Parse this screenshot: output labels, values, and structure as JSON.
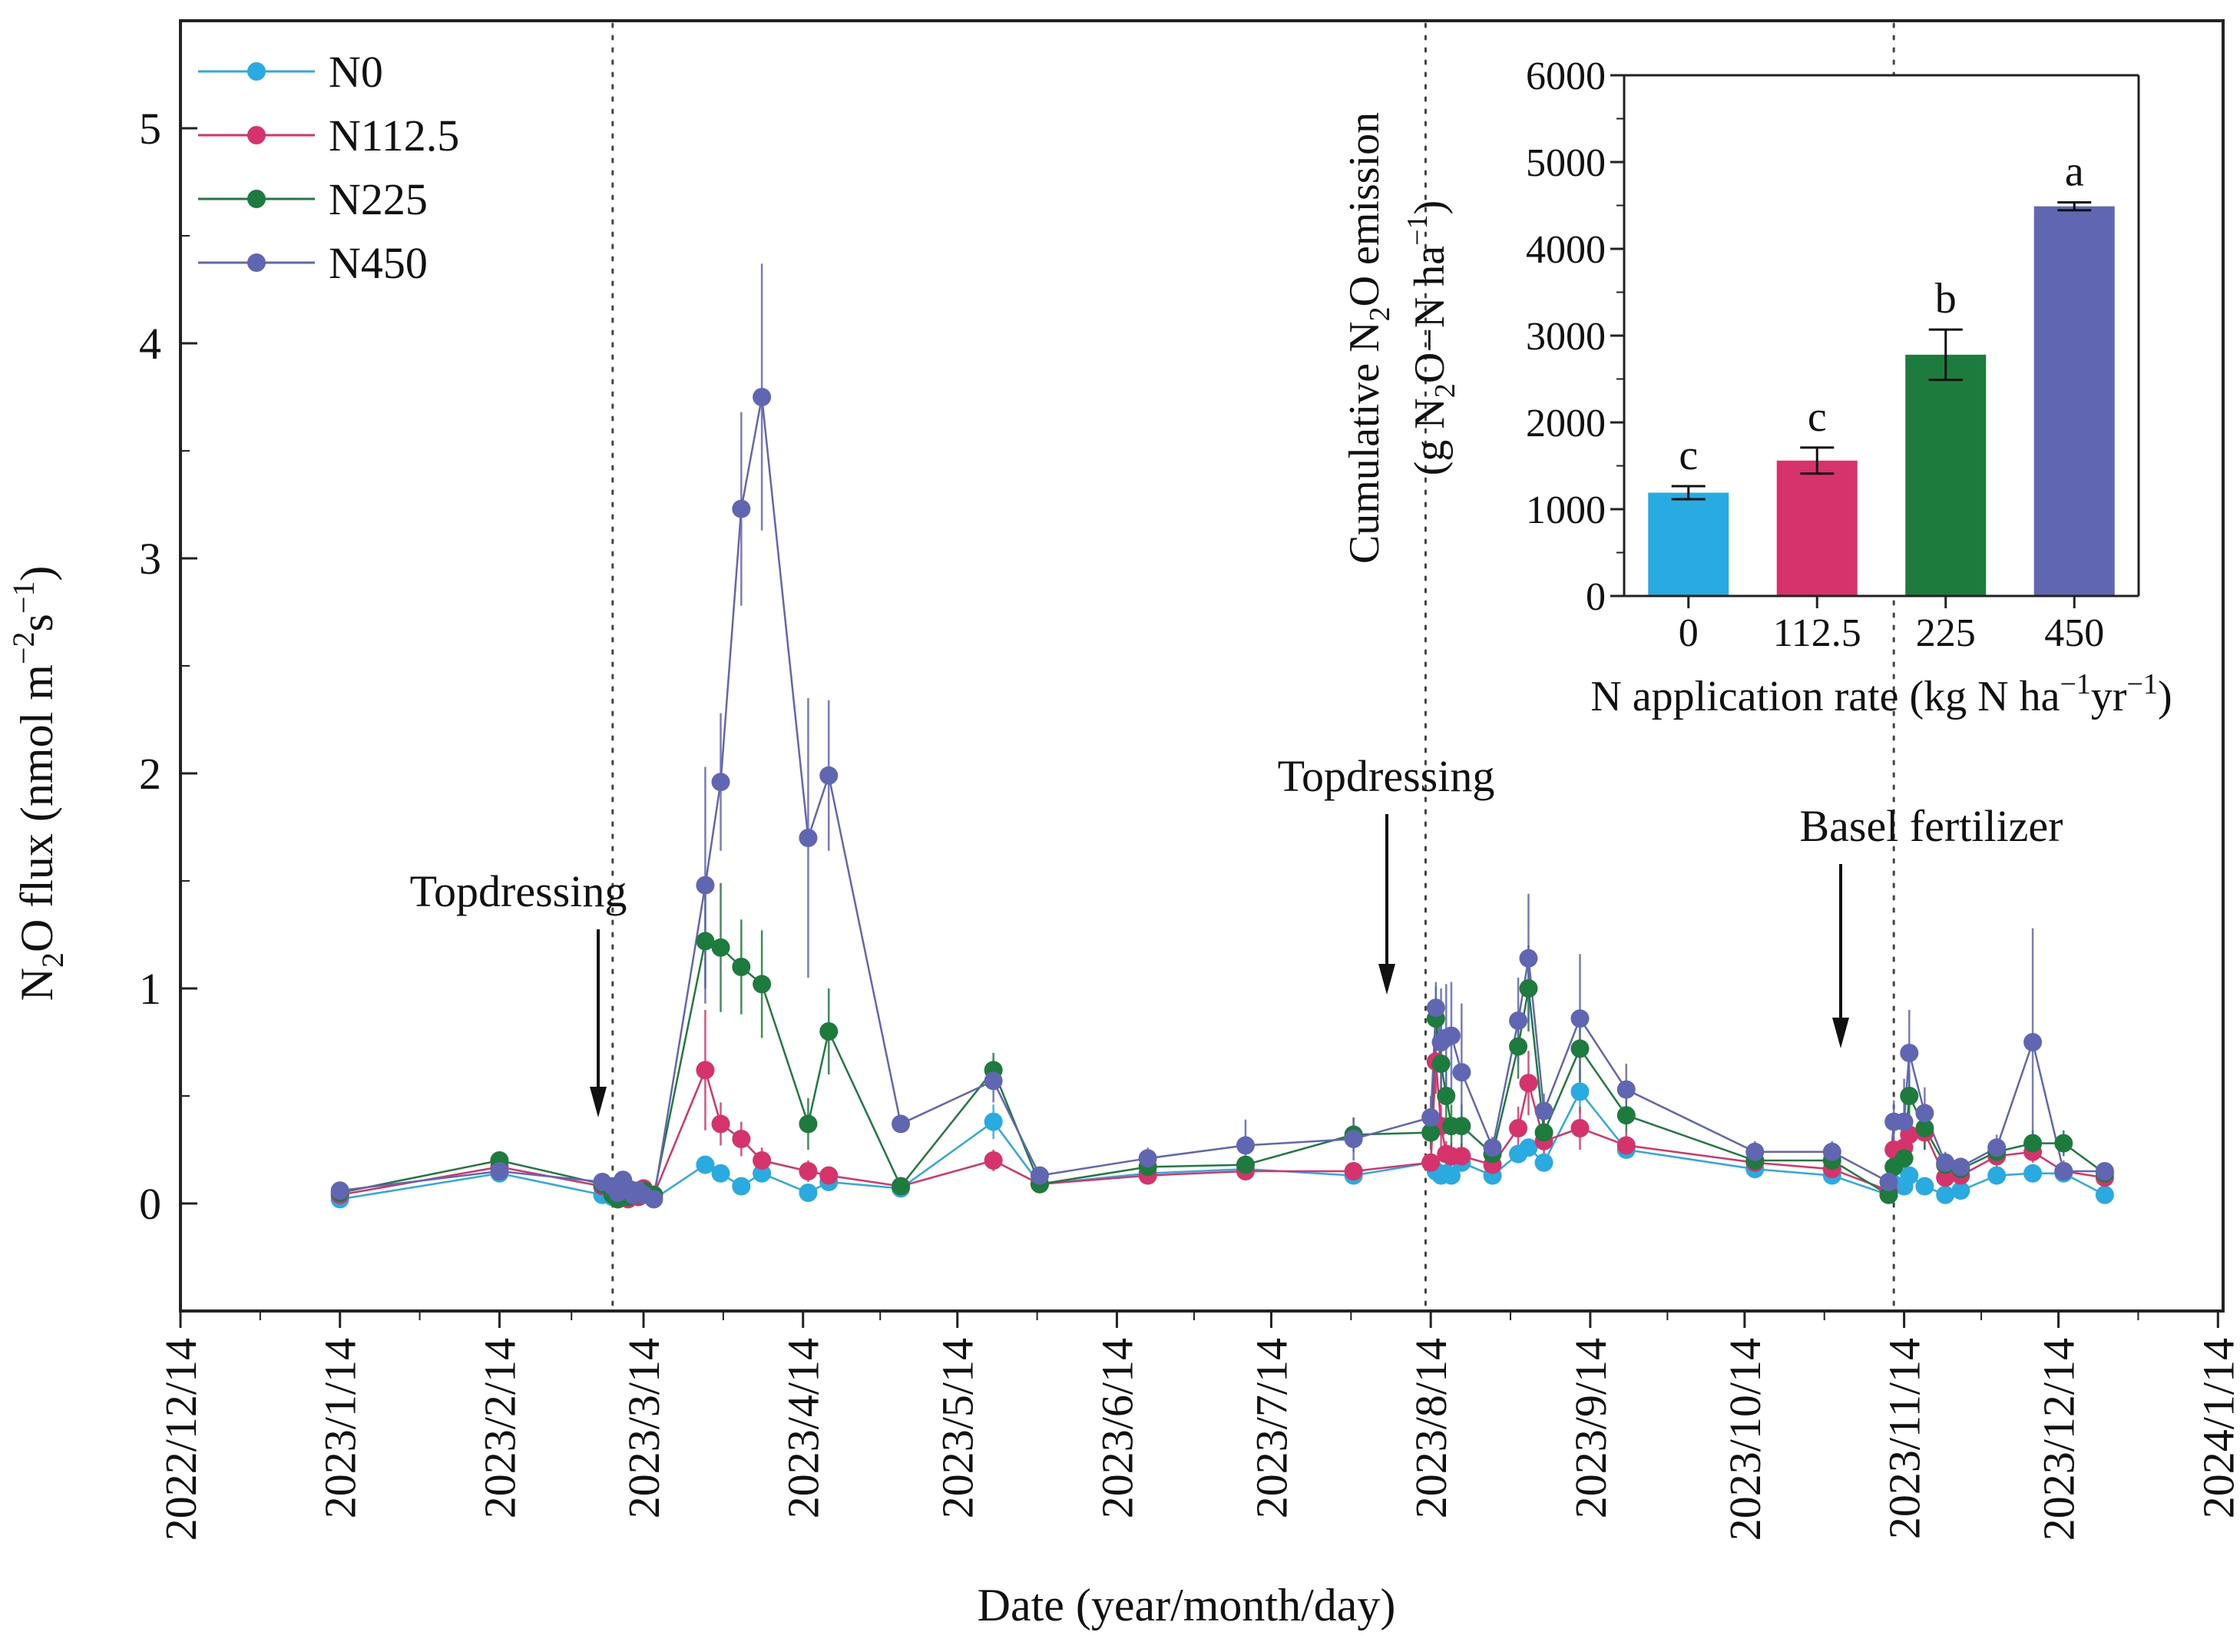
{
  "chart_data": [
    {
      "type": "line",
      "xlabel": "Date (year/month/day)",
      "ylabel_parts": {
        "a": "N",
        "b": "2",
        "c": "O flux (nmol m",
        "d": "−2",
        "e": "s",
        "f": "−1",
        "g": ")"
      },
      "ylim": [
        -0.5,
        5.5
      ],
      "y_ticks": [
        "0",
        "1",
        "2",
        "3",
        "4",
        "5"
      ],
      "x_range_days": [
        -31,
        366
      ],
      "x_ticks": [
        {
          "day": -31,
          "label": "2022/12/14"
        },
        {
          "day": 0,
          "label": "2023/1/14"
        },
        {
          "day": 31,
          "label": "2023/2/14"
        },
        {
          "day": 59,
          "label": "2023/3/14"
        },
        {
          "day": 90,
          "label": "2023/4/14"
        },
        {
          "day": 120,
          "label": "2023/5/14"
        },
        {
          "day": 151,
          "label": "2023/6/14"
        },
        {
          "day": 181,
          "label": "2023/7/14"
        },
        {
          "day": 212,
          "label": "2023/8/14"
        },
        {
          "day": 243,
          "label": "2023/9/14"
        },
        {
          "day": 273,
          "label": "2023/10/14"
        },
        {
          "day": 304,
          "label": "2023/11/14"
        },
        {
          "day": 334,
          "label": "2023/12/14"
        },
        {
          "day": 365,
          "label": "2024/1/14"
        }
      ],
      "x_days": [
        0,
        31,
        51,
        53,
        54,
        55,
        56,
        57,
        58,
        59,
        61,
        71,
        74,
        78,
        82,
        91,
        95,
        109,
        127,
        136,
        157,
        176,
        197,
        212,
        213,
        214,
        215,
        216,
        218,
        224,
        229,
        231,
        234,
        241,
        250,
        275,
        290,
        301,
        302,
        304,
        305,
        308,
        312,
        315,
        322,
        329,
        335,
        343
      ],
      "series": [
        {
          "name": "N0",
          "color": "#29abe2",
          "values": [
            0.02,
            0.14,
            0.04,
            0.03,
            0.02,
            0.04,
            0.03,
            0.05,
            0.03,
            0.04,
            0.02,
            0.18,
            0.14,
            0.08,
            0.14,
            0.05,
            0.1,
            0.07,
            0.38,
            0.09,
            0.14,
            0.16,
            0.13,
            0.19,
            0.15,
            0.13,
            0.14,
            0.13,
            0.19,
            0.13,
            0.23,
            0.26,
            0.19,
            0.52,
            0.25,
            0.16,
            0.13,
            0.04,
            0.09,
            0.08,
            0.13,
            0.08,
            0.04,
            0.06,
            0.13,
            0.14,
            0.14,
            0.04
          ],
          "errors": [
            0.02,
            0.02,
            0.02,
            0.02,
            0.02,
            0.02,
            0.02,
            0.02,
            0.02,
            0.02,
            0.02,
            0.04,
            0.03,
            0.02,
            0.03,
            0.02,
            0.03,
            0.02,
            0.08,
            0.02,
            0.03,
            0.03,
            0.03,
            0.04,
            0.03,
            0.03,
            0.03,
            0.03,
            0.04,
            0.03,
            0.04,
            0.04,
            0.03,
            0.1,
            0.04,
            0.03,
            0.03,
            0.02,
            0.02,
            0.02,
            0.03,
            0.02,
            0.02,
            0.02,
            0.03,
            0.03,
            0.03,
            0.02
          ]
        },
        {
          "name": "N112.5",
          "color": "#d6336c",
          "values": [
            0.04,
            0.17,
            0.08,
            0.04,
            0.02,
            0.06,
            0.02,
            0.06,
            0.03,
            0.07,
            0.04,
            0.62,
            0.37,
            0.3,
            0.2,
            0.15,
            0.13,
            0.08,
            0.2,
            0.09,
            0.13,
            0.15,
            0.15,
            0.19,
            0.66,
            0.36,
            0.23,
            0.22,
            0.22,
            0.18,
            0.35,
            0.56,
            0.29,
            0.35,
            0.27,
            0.19,
            0.16,
            0.06,
            0.25,
            0.26,
            0.32,
            0.33,
            0.12,
            0.13,
            0.22,
            0.24,
            0.15,
            0.12
          ],
          "errors": [
            0.02,
            0.03,
            0.03,
            0.02,
            0.02,
            0.02,
            0.02,
            0.02,
            0.02,
            0.02,
            0.02,
            0.28,
            0.1,
            0.08,
            0.06,
            0.05,
            0.04,
            0.02,
            0.05,
            0.02,
            0.03,
            0.03,
            0.03,
            0.04,
            0.15,
            0.1,
            0.06,
            0.06,
            0.06,
            0.04,
            0.1,
            0.15,
            0.06,
            0.1,
            0.06,
            0.04,
            0.04,
            0.02,
            0.06,
            0.06,
            0.08,
            0.08,
            0.03,
            0.03,
            0.05,
            0.05,
            0.04,
            0.03
          ]
        },
        {
          "name": "N225",
          "color": "#1e7b3e",
          "values": [
            0.05,
            0.2,
            0.09,
            0.04,
            0.02,
            0.05,
            0.03,
            0.06,
            0.04,
            0.06,
            0.04,
            1.22,
            1.19,
            1.1,
            1.02,
            0.37,
            0.8,
            0.08,
            0.62,
            0.09,
            0.17,
            0.18,
            0.32,
            0.33,
            0.86,
            0.65,
            0.5,
            0.36,
            0.36,
            0.23,
            0.73,
            1.0,
            0.33,
            0.72,
            0.41,
            0.2,
            0.2,
            0.04,
            0.17,
            0.21,
            0.5,
            0.35,
            0.18,
            0.16,
            0.24,
            0.28,
            0.28,
            0.14
          ],
          "errors": [
            0.02,
            0.04,
            0.03,
            0.02,
            0.02,
            0.02,
            0.02,
            0.02,
            0.02,
            0.02,
            0.02,
            0.22,
            0.3,
            0.22,
            0.25,
            0.12,
            0.2,
            0.02,
            0.08,
            0.02,
            0.04,
            0.04,
            0.08,
            0.08,
            0.15,
            0.18,
            0.12,
            0.1,
            0.1,
            0.05,
            0.15,
            0.2,
            0.08,
            0.15,
            0.08,
            0.04,
            0.04,
            0.02,
            0.05,
            0.05,
            0.12,
            0.1,
            0.04,
            0.04,
            0.05,
            0.06,
            0.06,
            0.03
          ]
        },
        {
          "name": "N450",
          "color": "#6166b3",
          "values": [
            0.06,
            0.15,
            0.1,
            0.08,
            0.05,
            0.11,
            0.07,
            0.04,
            0.06,
            0.04,
            0.02,
            1.48,
            1.96,
            3.23,
            3.75,
            1.7,
            1.99,
            0.37,
            0.57,
            0.13,
            0.21,
            0.27,
            0.3,
            0.4,
            0.91,
            0.75,
            0.77,
            0.78,
            0.61,
            0.26,
            0.85,
            1.14,
            0.43,
            0.86,
            0.53,
            0.24,
            0.24,
            0.1,
            0.38,
            0.38,
            0.7,
            0.42,
            0.19,
            0.17,
            0.26,
            0.75,
            0.15,
            0.15
          ],
          "errors": [
            0.02,
            0.04,
            0.04,
            0.03,
            0.03,
            0.04,
            0.03,
            0.03,
            0.03,
            0.02,
            0.02,
            0.55,
            0.32,
            0.45,
            0.62,
            0.65,
            0.35,
            0.03,
            0.1,
            0.03,
            0.05,
            0.12,
            0.1,
            0.1,
            0.12,
            0.25,
            0.25,
            0.25,
            0.32,
            0.05,
            0.2,
            0.3,
            0.08,
            0.3,
            0.12,
            0.05,
            0.05,
            0.03,
            0.1,
            0.2,
            0.2,
            0.12,
            0.05,
            0.04,
            0.06,
            0.53,
            0.05,
            0.04
          ]
        }
      ],
      "annotations": [
        {
          "text": "Topdressing",
          "day": 53
        },
        {
          "text": "Topdressing",
          "day": 211
        },
        {
          "text": "Basel fertilizer",
          "day": 302
        }
      ],
      "vlines_days": [
        53,
        211,
        302
      ]
    },
    {
      "type": "bar",
      "title_line1_parts": {
        "a": "Cumulative N",
        "b": "2",
        "c": "O emission"
      },
      "title_line2_parts": {
        "a": "(g N",
        "b": "2",
        "c": "O−N ha",
        "d": "−1",
        "e": ")"
      },
      "xlabel_parts": {
        "a": "N application rate (kg N ha",
        "b": "−1",
        "c": "yr",
        "d": "−1",
        "e": ")"
      },
      "categories": [
        "0",
        "112.5",
        "225",
        "450"
      ],
      "values": [
        1190,
        1560,
        2780,
        4490
      ],
      "errors": [
        75,
        150,
        290,
        45
      ],
      "significance": [
        "c",
        "c",
        "b",
        "a"
      ],
      "colors": [
        "#29abe2",
        "#d6336c",
        "#1e7b3e",
        "#6166b3"
      ],
      "ylim": [
        0,
        6000
      ],
      "y_ticks": [
        "0",
        "1000",
        "2000",
        "3000",
        "4000",
        "5000",
        "6000"
      ]
    }
  ]
}
